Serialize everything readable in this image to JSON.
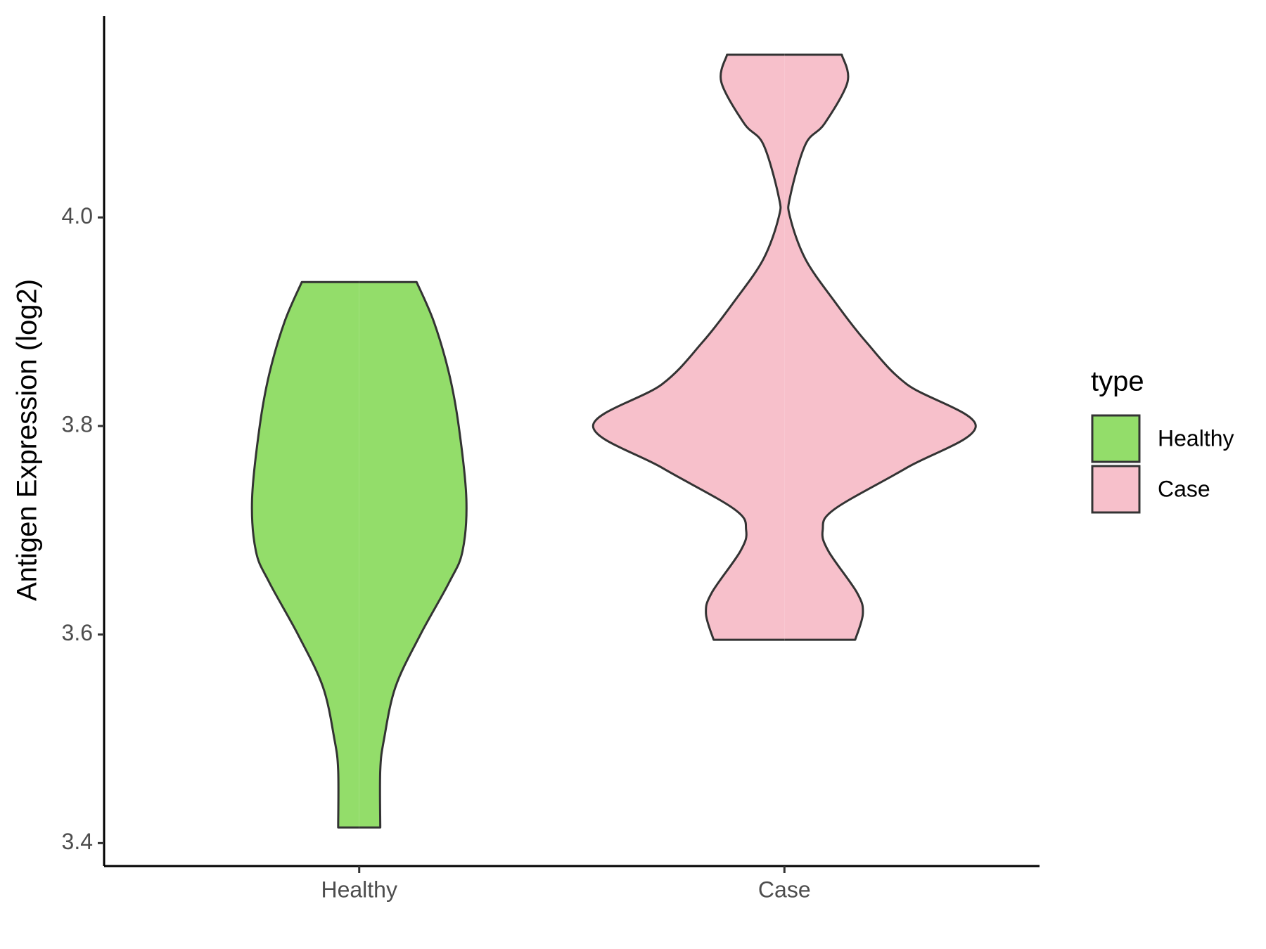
{
  "chart_data": {
    "type": "violin",
    "y_label": "Antigen Expression (log2)",
    "categories": [
      "Healthy",
      "Case"
    ],
    "legend_title": "type",
    "legend": "right",
    "ylim": [
      3.378,
      4.193
    ],
    "yticks": [
      3.4,
      3.6,
      3.8,
      {
        "value": 4,
        "label": "4.0"
      }
    ],
    "series": [
      {
        "name": "Healthy",
        "color": "#93dd6a",
        "y": [
          3.938,
          3.9,
          3.85,
          3.8,
          3.73,
          3.68,
          3.65,
          3.6,
          3.55,
          3.5,
          3.47,
          3.415
        ],
        "density": [
          0.3,
          0.39,
          0.47,
          0.52,
          0.56,
          0.54,
          0.47,
          0.32,
          0.19,
          0.13,
          0.11,
          0.11
        ]
      },
      {
        "name": "Case",
        "color": "#f7c0cb",
        "y": [
          4.156,
          4.13,
          4.09,
          4.07,
          4.02,
          4.0,
          3.96,
          3.92,
          3.88,
          3.84,
          3.8,
          3.76,
          3.72,
          3.7,
          3.68,
          3.64,
          3.62,
          3.595
        ],
        "density": [
          0.3,
          0.33,
          0.21,
          0.11,
          0.03,
          0.03,
          0.11,
          0.26,
          0.43,
          0.64,
          1.0,
          0.64,
          0.26,
          0.2,
          0.23,
          0.38,
          0.41,
          0.37
        ]
      }
    ]
  }
}
